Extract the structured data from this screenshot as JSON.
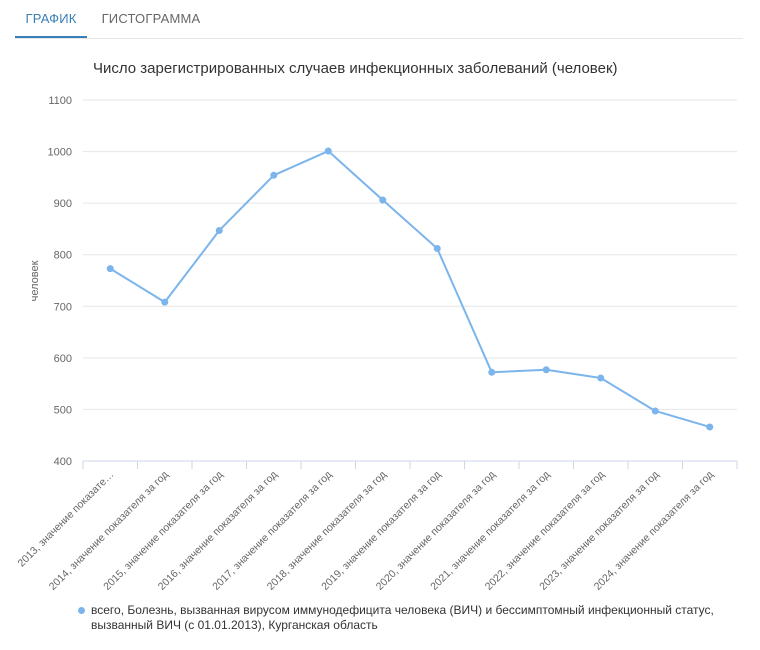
{
  "tabs": [
    {
      "label": "ГРАФИК",
      "active": true
    },
    {
      "label": "ГИСТОГРАММА",
      "active": false
    }
  ],
  "colors": {
    "accent": "#3a7fb5",
    "series": "#7cb5ec",
    "grid": "#e6e6e6"
  },
  "chart_data": {
    "type": "line",
    "title": "Число зарегистрированных случаев инфекционных заболеваний (человек)",
    "xlabel": "",
    "ylabel": "человек",
    "ylim": [
      400,
      1100
    ],
    "yticks": [
      400,
      500,
      600,
      700,
      800,
      900,
      1000,
      1100
    ],
    "grid": true,
    "legend_position": "bottom",
    "categories": [
      "2013, значение показате…",
      "2014, значение показателя за год",
      "2015, значение показателя за год",
      "2016, значение показателя за год",
      "2017, значение показателя за год",
      "2018, значение показателя за год",
      "2019, значение показателя за год",
      "2020, значение показателя за год",
      "2021, значение показателя за год",
      "2022, значение показателя за год",
      "2023, значение показателя за год",
      "2024, значение показателя за год"
    ],
    "series": [
      {
        "name": "всего, Болезнь, вызванная вирусом иммунодефицита человека (ВИЧ) и бессимптомный инфекционный статус, вызванный ВИЧ (с 01.01.2013), Курганская область",
        "color": "#7cb5ec",
        "values": [
          773,
          708,
          847,
          954,
          1001,
          906,
          812,
          572,
          577,
          561,
          497,
          466
        ]
      }
    ]
  }
}
